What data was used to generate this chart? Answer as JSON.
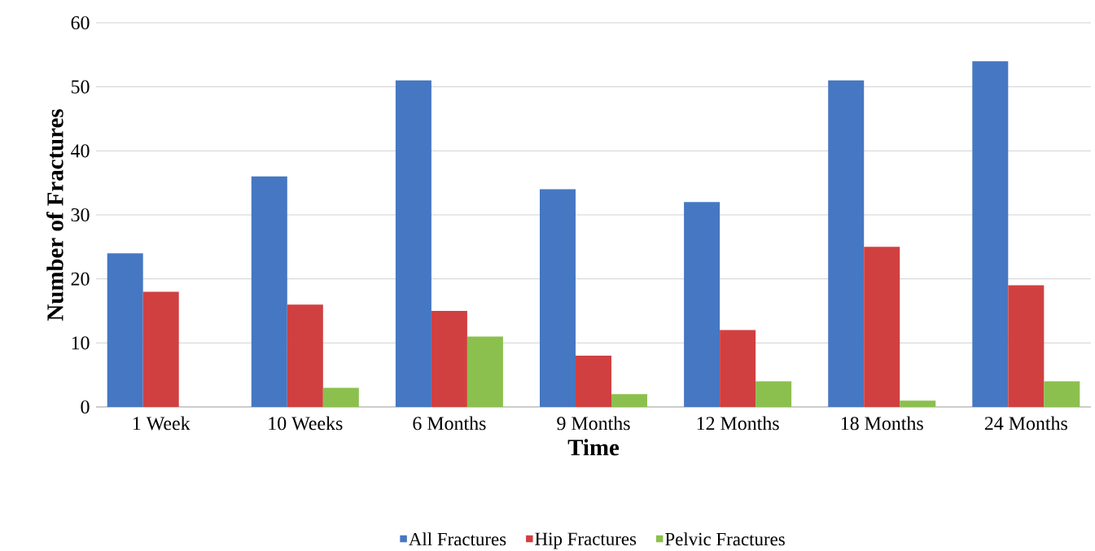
{
  "chart_data": {
    "type": "bar",
    "xlabel": "Time",
    "ylabel": "Number of Fractures",
    "categories": [
      "1 Week",
      "10 Weeks",
      "6 Months",
      "9 Months",
      "12 Months",
      "18 Months",
      "24 Months"
    ],
    "series": [
      {
        "name": "All Fractures",
        "color": "#4677c2",
        "values": [
          24,
          36,
          51,
          34,
          32,
          51,
          54
        ]
      },
      {
        "name": "Hip Fractures",
        "color": "#d04040",
        "values": [
          18,
          16,
          15,
          8,
          12,
          25,
          19
        ]
      },
      {
        "name": "Pelvic Fractures",
        "color": "#8bc04e",
        "values": [
          0,
          3,
          11,
          2,
          4,
          1,
          4
        ]
      }
    ],
    "ylim": [
      0,
      60
    ],
    "yticks": [
      0,
      10,
      20,
      30,
      40,
      50,
      60
    ],
    "grid": "y",
    "legend": "bottom"
  }
}
